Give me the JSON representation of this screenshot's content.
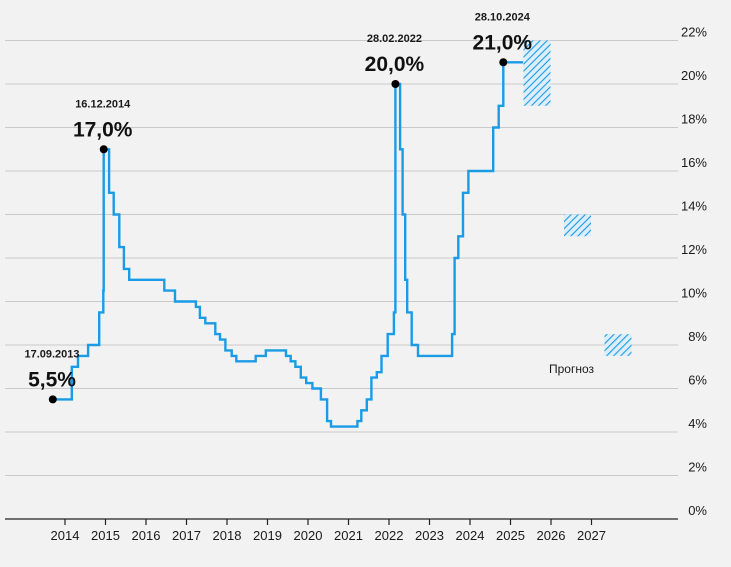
{
  "chart_data": {
    "type": "line",
    "line_style": "step",
    "title": "",
    "xlabel": "",
    "ylabel": "",
    "x_ticks": [
      "2014",
      "2015",
      "2016",
      "2017",
      "2018",
      "2019",
      "2020",
      "2021",
      "2022",
      "2023",
      "2024",
      "2025",
      "2026",
      "2027"
    ],
    "y_ticks": [
      "0%",
      "2%",
      "4%",
      "6%",
      "8%",
      "10%",
      "12%",
      "14%",
      "16%",
      "18%",
      "20%",
      "22%"
    ],
    "ylim": [
      0,
      22
    ],
    "xlim": [
      "2013-01-01",
      "2027-12-31"
    ],
    "grid": true,
    "y_axis_position": "right",
    "series": [
      {
        "color": "#1a9be6",
        "points": [
          [
            "2013-09-13",
            5.5
          ],
          [
            "2014-03-03",
            7.0
          ],
          [
            "2014-04-28",
            7.5
          ],
          [
            "2014-07-28",
            8.0
          ],
          [
            "2014-11-05",
            9.5
          ],
          [
            "2014-12-12",
            10.5
          ],
          [
            "2014-12-16",
            17.0
          ],
          [
            "2015-02-02",
            15.0
          ],
          [
            "2015-03-16",
            14.0
          ],
          [
            "2015-05-05",
            12.5
          ],
          [
            "2015-06-16",
            11.5
          ],
          [
            "2015-08-03",
            11.0
          ],
          [
            "2016-06-14",
            10.5
          ],
          [
            "2016-09-19",
            10.0
          ],
          [
            "2017-03-27",
            9.75
          ],
          [
            "2017-05-02",
            9.25
          ],
          [
            "2017-06-19",
            9.0
          ],
          [
            "2017-09-18",
            8.5
          ],
          [
            "2017-10-30",
            8.25
          ],
          [
            "2017-12-18",
            7.75
          ],
          [
            "2018-02-12",
            7.5
          ],
          [
            "2018-03-26",
            7.25
          ],
          [
            "2018-09-17",
            7.5
          ],
          [
            "2018-12-17",
            7.75
          ],
          [
            "2019-06-17",
            7.5
          ],
          [
            "2019-07-29",
            7.25
          ],
          [
            "2019-09-09",
            7.0
          ],
          [
            "2019-10-28",
            6.5
          ],
          [
            "2019-12-16",
            6.25
          ],
          [
            "2020-02-10",
            6.0
          ],
          [
            "2020-04-27",
            5.5
          ],
          [
            "2020-06-22",
            4.5
          ],
          [
            "2020-07-27",
            4.25
          ],
          [
            "2021-03-22",
            4.5
          ],
          [
            "2021-04-26",
            5.0
          ],
          [
            "2021-06-15",
            5.5
          ],
          [
            "2021-07-26",
            6.5
          ],
          [
            "2021-09-13",
            6.75
          ],
          [
            "2021-10-25",
            7.5
          ],
          [
            "2021-12-20",
            8.5
          ],
          [
            "2022-02-14",
            9.5
          ],
          [
            "2022-02-28",
            20.0
          ],
          [
            "2022-04-11",
            17.0
          ],
          [
            "2022-05-04",
            14.0
          ],
          [
            "2022-05-27",
            11.0
          ],
          [
            "2022-06-14",
            9.5
          ],
          [
            "2022-07-25",
            8.0
          ],
          [
            "2022-09-19",
            7.5
          ],
          [
            "2023-07-24",
            8.5
          ],
          [
            "2023-08-15",
            12.0
          ],
          [
            "2023-09-18",
            13.0
          ],
          [
            "2023-10-30",
            15.0
          ],
          [
            "2023-12-18",
            16.0
          ],
          [
            "2024-07-29",
            18.0
          ],
          [
            "2024-09-16",
            19.0
          ],
          [
            "2024-10-28",
            21.0
          ],
          [
            "2025-04-25",
            21.0
          ]
        ]
      }
    ],
    "forecast": {
      "label": "Прогноз",
      "color": "#1a9be6",
      "ranges": [
        {
          "year": "2025",
          "low": 19.0,
          "high": 22.0
        },
        {
          "year": "2026",
          "low": 13.0,
          "high": 14.0
        },
        {
          "year": "2027",
          "low": 7.5,
          "high": 8.5
        }
      ]
    },
    "annotations": [
      {
        "date": "17.09.2013",
        "value": "5,5%",
        "x": "2013-09-13",
        "y": 5.5
      },
      {
        "date": "16.12.2014",
        "value": "17,0%",
        "x": "2014-12-16",
        "y": 17.0
      },
      {
        "date": "28.02.2022",
        "value": "20,0%",
        "x": "2022-02-28",
        "y": 20.0
      },
      {
        "date": "28.10.2024",
        "value": "21,0%",
        "x": "2024-10-28",
        "y": 21.0
      }
    ]
  }
}
